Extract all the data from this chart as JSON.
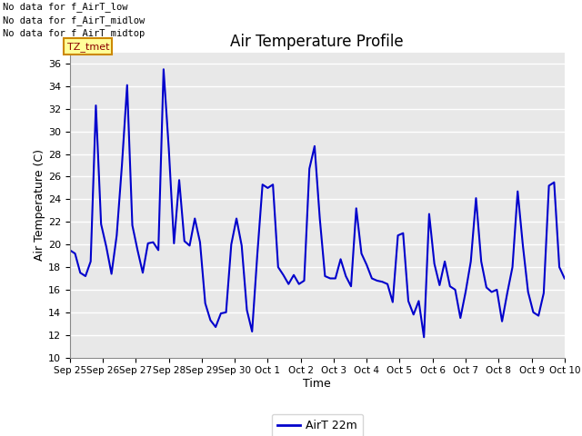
{
  "title": "Air Temperature Profile",
  "xlabel": "Time",
  "ylabel": "Air Temperature (C)",
  "ylim": [
    10,
    37
  ],
  "yticks": [
    10,
    12,
    14,
    16,
    18,
    20,
    22,
    24,
    26,
    28,
    30,
    32,
    34,
    36
  ],
  "line_color": "#0000cc",
  "line_width": 1.5,
  "fig_bg_color": "#ffffff",
  "plot_bg_color": "#e8e8e8",
  "grid_color": "#ffffff",
  "legend_label": "AirT 22m",
  "no_data_texts": [
    "No data for f_AirT_low",
    "No data for f_AirT_midlow",
    "No data for f_AirT_midtop"
  ],
  "tz_label": "TZ_tmet",
  "x_tick_labels": [
    "Sep 25",
    "Sep 26",
    "Sep 27",
    "Sep 28",
    "Sep 29",
    "Sep 30",
    "Oct 1",
    "Oct 2",
    "Oct 3",
    "Oct 4",
    "Oct 5",
    "Oct 6",
    "Oct 7",
    "Oct 8",
    "Oct 9",
    "Oct 10"
  ],
  "temperature_data": [
    19.5,
    19.2,
    17.5,
    17.2,
    18.5,
    32.3,
    21.8,
    19.8,
    17.4,
    20.8,
    27.0,
    34.1,
    21.7,
    19.5,
    17.5,
    20.1,
    20.2,
    19.5,
    35.5,
    28.5,
    20.1,
    25.7,
    20.3,
    19.9,
    22.3,
    20.2,
    14.8,
    13.3,
    12.7,
    13.9,
    14.0,
    20.0,
    22.3,
    19.9,
    14.2,
    12.3,
    19.1,
    25.3,
    25.0,
    25.3,
    18.0,
    17.3,
    16.5,
    17.3,
    16.5,
    16.8,
    26.7,
    28.7,
    22.3,
    17.2,
    17.0,
    17.0,
    18.7,
    17.2,
    16.3,
    23.2,
    19.2,
    18.2,
    17.0,
    16.8,
    16.7,
    16.5,
    14.9,
    20.8,
    21.0,
    15.0,
    13.8,
    15.0,
    11.8,
    22.7,
    18.3,
    16.4,
    18.5,
    16.3,
    16.0,
    13.5,
    15.8,
    18.5,
    24.1,
    18.5,
    16.2,
    15.8,
    16.0,
    13.2,
    15.7,
    18.0,
    24.7,
    19.9,
    15.8,
    14.0,
    13.7,
    15.7,
    25.2,
    25.5,
    18.0,
    17.0
  ]
}
